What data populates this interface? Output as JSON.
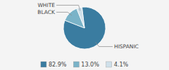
{
  "chart_data": {
    "type": "pie",
    "categories": [
      "HISPANIC",
      "BLACK",
      "WHITE"
    ],
    "values": [
      82.9,
      13.0,
      4.1
    ],
    "value_labels": [
      "82.9%",
      "13.0%",
      "4.1%"
    ],
    "colors": [
      "#3a7ca0",
      "#7ab3c8",
      "#cfe0ea"
    ],
    "legend": "bottom"
  }
}
